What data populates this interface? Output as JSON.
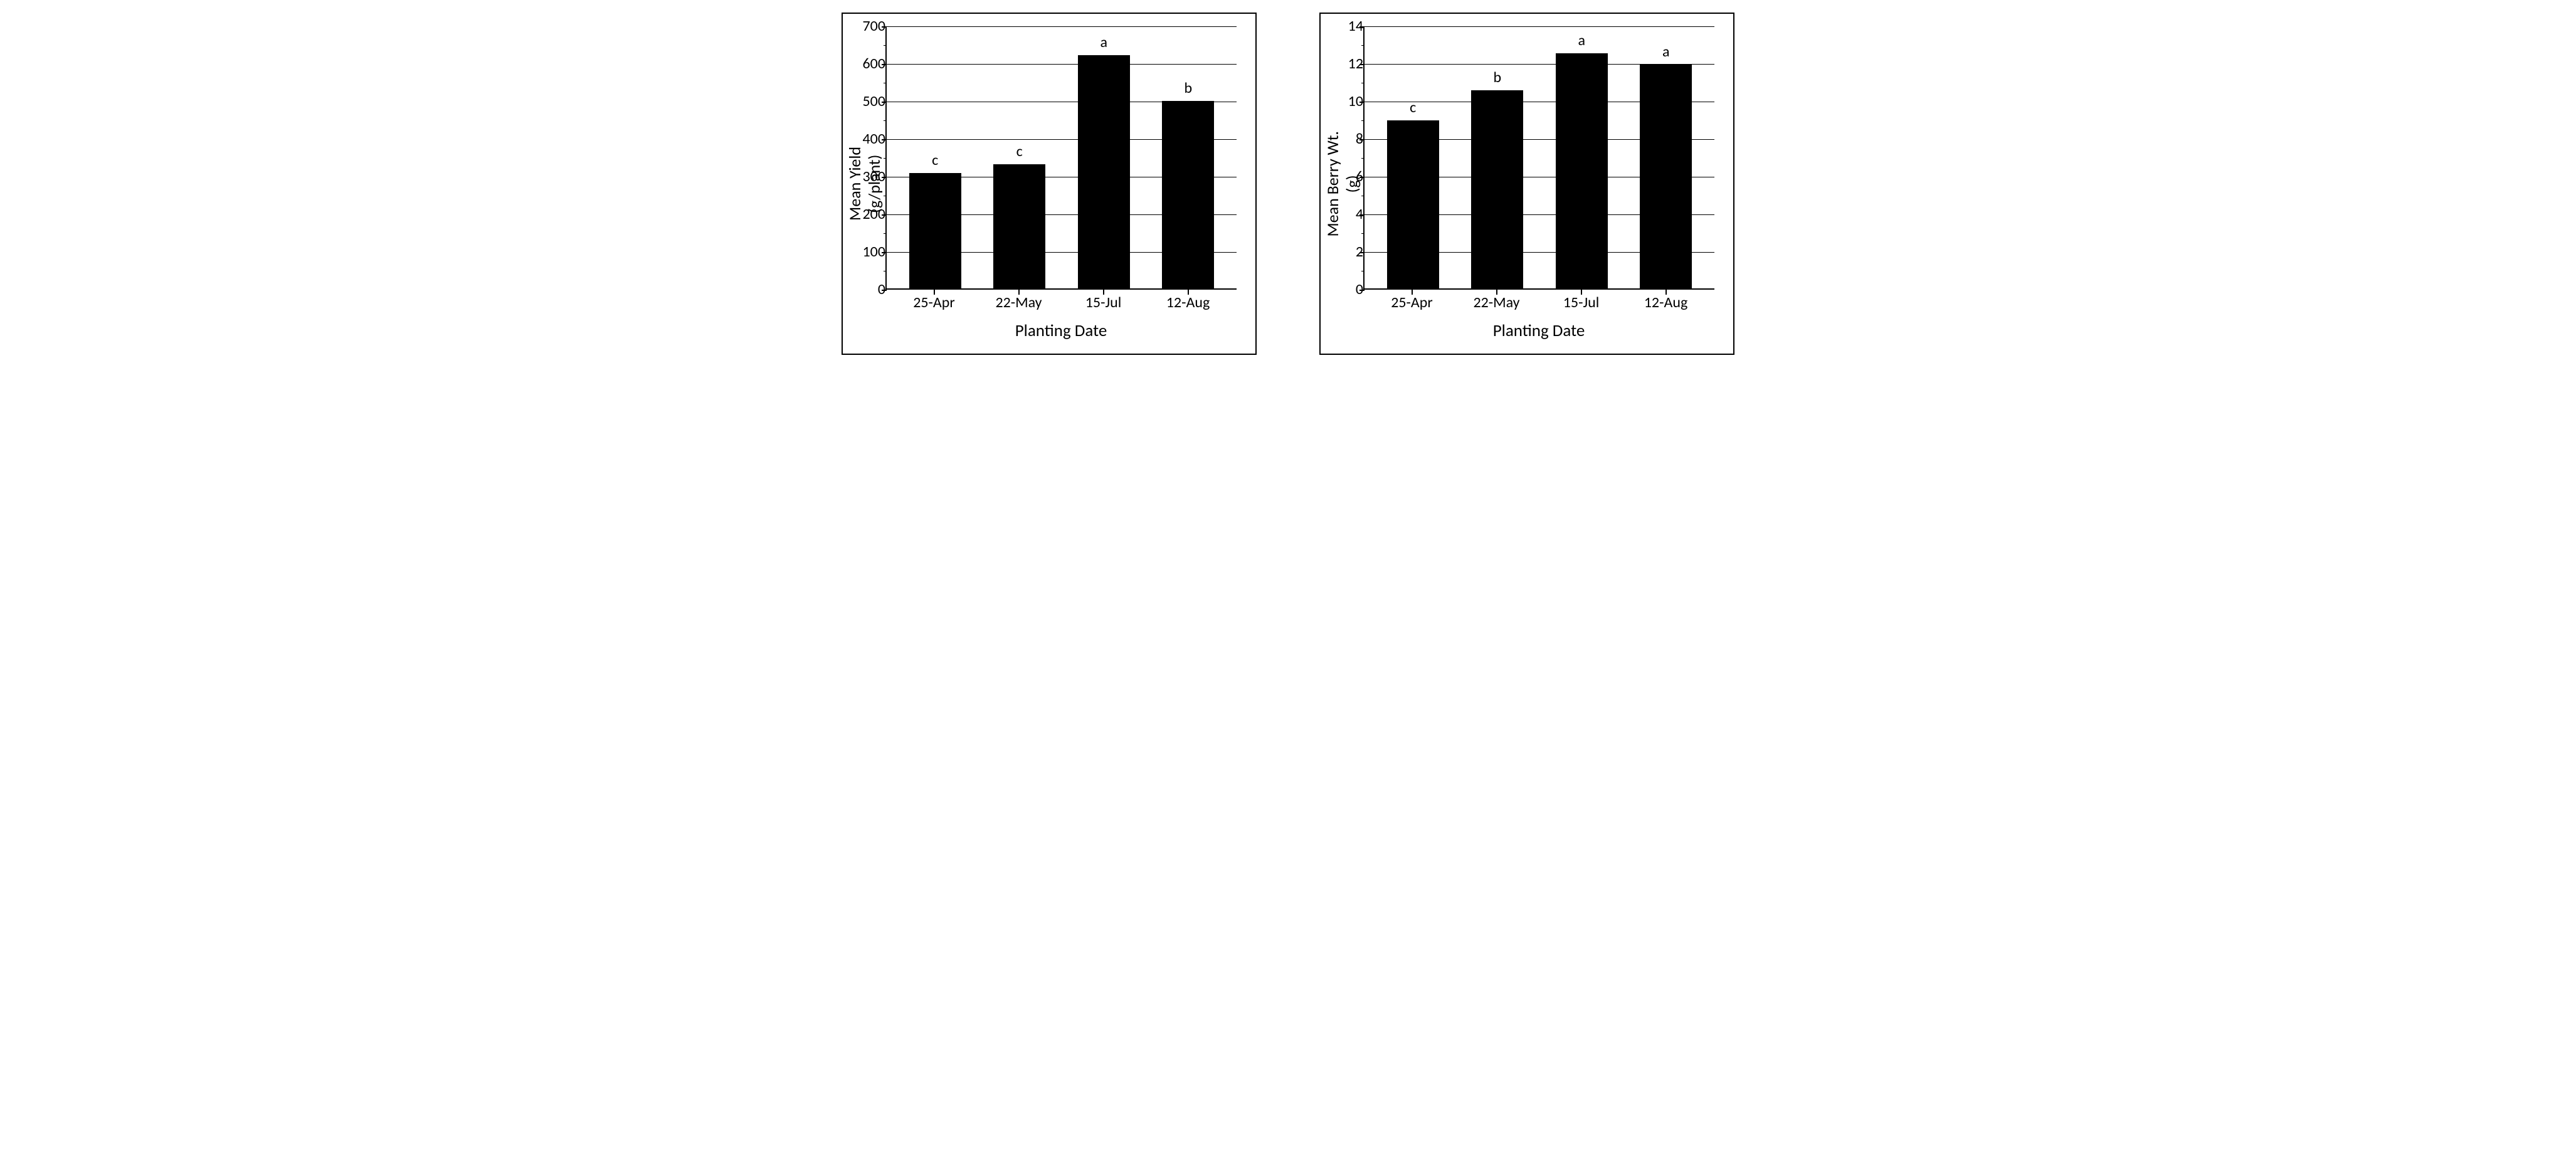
{
  "charts": [
    {
      "type": "bar",
      "ylabel": "Mean Yield\n(g/plant)",
      "xlabel": "Planting Date",
      "categories": [
        "25-Apr",
        "22-May",
        "15-Jul",
        "12-Aug"
      ],
      "values": [
        307,
        330,
        620,
        498
      ],
      "bar_labels": [
        "c",
        "c",
        "a",
        "b"
      ],
      "bar_color": "#000000",
      "ylim": [
        0,
        700
      ],
      "ytick_step": 100,
      "yminor_per_major": 1,
      "background_color": "#ffffff",
      "grid_color": "#000000",
      "axis_color": "#000000",
      "bar_width": 0.62,
      "label_fontsize": 26,
      "tick_fontsize": 24,
      "bar_label_fontsize": 24
    },
    {
      "type": "bar",
      "ylabel": "Mean Berry Wt.\n(g)",
      "xlabel": "Planting Date",
      "categories": [
        "25-Apr",
        "22-May",
        "15-Jul",
        "12-Aug"
      ],
      "values": [
        8.95,
        10.55,
        12.5,
        11.9
      ],
      "bar_labels": [
        "c",
        "b",
        "a",
        "a"
      ],
      "bar_color": "#000000",
      "ylim": [
        0,
        14
      ],
      "ytick_step": 2,
      "yminor_per_major": 1,
      "background_color": "#ffffff",
      "grid_color": "#000000",
      "axis_color": "#000000",
      "bar_width": 0.62,
      "label_fontsize": 26,
      "tick_fontsize": 24,
      "bar_label_fontsize": 24
    }
  ]
}
